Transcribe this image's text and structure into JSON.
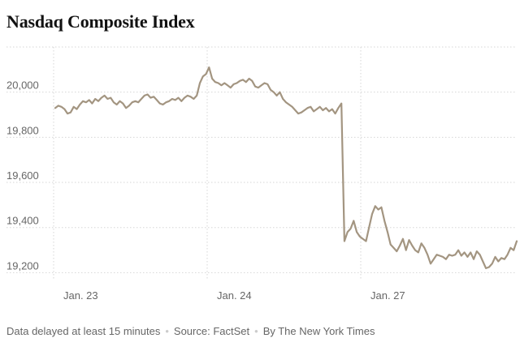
{
  "chart_data": {
    "type": "line",
    "title": "Nasdaq Composite Index",
    "xlabel": "",
    "ylabel": "",
    "x_ticks": [
      "Jan. 23",
      "Jan. 24",
      "Jan. 27"
    ],
    "y_ticks": [
      19200,
      19400,
      19600,
      19800,
      20000
    ],
    "ylim": [
      19180,
      20200
    ],
    "grid": true,
    "line_color": "#a39581",
    "series": [
      {
        "values": [
          19930,
          19940,
          19935,
          19925,
          19905,
          19910,
          19935,
          19925,
          19945,
          19960,
          19955,
          19965,
          19950,
          19970,
          19960,
          19975,
          19985,
          19970,
          19975,
          19955,
          19945,
          19960,
          19950,
          19930,
          19940,
          19955,
          19960,
          19955,
          19970,
          19985,
          19990,
          19975,
          19980,
          19965,
          19950,
          19945,
          19955,
          19960,
          19970,
          19965,
          19975,
          19960,
          19975,
          19985,
          19980,
          19970,
          19985,
          20040,
          20070,
          20080,
          20110,
          20060,
          20045,
          20040,
          20030,
          20040,
          20030,
          20020,
          20035,
          20040,
          20050,
          20055,
          20045,
          20060,
          20050,
          20025,
          20020,
          20030,
          20040,
          20035,
          20010,
          20000,
          19985,
          20000,
          19970,
          19955,
          19945,
          19935,
          19920,
          19905,
          19910,
          19920,
          19930,
          19935,
          19915,
          19925,
          19935,
          19920,
          19930,
          19915,
          19925,
          19905,
          19930,
          19950,
          19340,
          19380,
          19395,
          19430,
          19380,
          19360,
          19350,
          19340,
          19400,
          19460,
          19495,
          19480,
          19490,
          19430,
          19380,
          19325,
          19310,
          19295,
          19320,
          19350,
          19300,
          19345,
          19320,
          19300,
          19290,
          19330,
          19310,
          19280,
          19240,
          19260,
          19280,
          19275,
          19270,
          19260,
          19280,
          19275,
          19280,
          19300,
          19275,
          19290,
          19270,
          19290,
          19260,
          19295,
          19280,
          19250,
          19220,
          19225,
          19240,
          19270,
          19250,
          19265,
          19260,
          19280,
          19310,
          19300,
          19340
        ]
      }
    ]
  },
  "footer": {
    "delay_note": "Data delayed at least 15 minutes",
    "source": "Source: FactSet",
    "credit": "By The New York Times"
  }
}
